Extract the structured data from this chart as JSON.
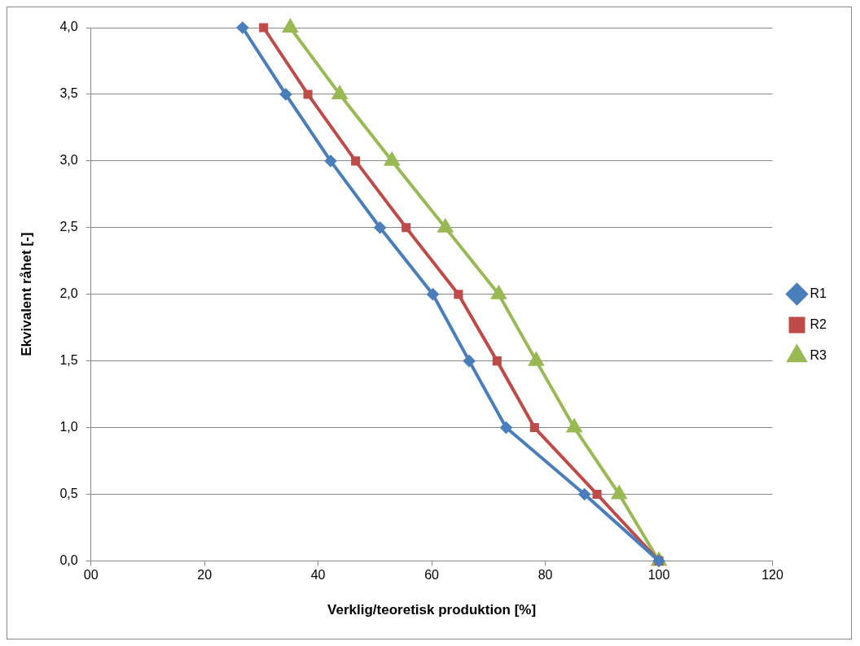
{
  "chart_data": {
    "type": "line",
    "xlabel": "Verklig/teoretisk produktion [%]",
    "ylabel": "Ekvivalent råhet [-]",
    "xlim": [
      0,
      120
    ],
    "xticks": [
      {
        "value": 0,
        "label": "00"
      },
      20,
      40,
      60,
      80,
      100,
      120
    ],
    "ylim": [
      0,
      4
    ],
    "yticks": [
      {
        "value": 0,
        "label": "0,0"
      },
      {
        "value": 0.5,
        "label": "0,5"
      },
      {
        "value": 1,
        "label": "1,0"
      },
      {
        "value": 1.5,
        "label": "1,5"
      },
      {
        "value": 2,
        "label": "2,0"
      },
      {
        "value": 2.5,
        "label": "2,5"
      },
      {
        "value": 3,
        "label": "3,0"
      },
      {
        "value": 3.5,
        "label": "3,5"
      },
      {
        "value": 4,
        "label": "4,0"
      }
    ],
    "grid": "y",
    "legend": "right",
    "line_style": "solid",
    "series": [
      {
        "name": "R1",
        "color": "#4a7ebb",
        "marker": "diamond",
        "x": [
          26.7,
          34.3,
          42.2,
          50.9,
          60.2,
          66.6,
          73.1,
          86.9,
          100
        ],
        "values": [
          4,
          3.5,
          3,
          2.5,
          2,
          1.5,
          1,
          0.5,
          0
        ]
      },
      {
        "name": "R2",
        "color": "#be4b48",
        "marker": "square",
        "x": [
          30.4,
          38.2,
          46.6,
          55.5,
          64.7,
          71.5,
          78.1,
          89.1,
          100
        ],
        "values": [
          4,
          3.5,
          3,
          2.5,
          2,
          1.5,
          1,
          0.5,
          0
        ]
      },
      {
        "name": "R3",
        "color": "#98b954",
        "marker": "triangle",
        "x": [
          35.1,
          43.8,
          53.0,
          62.4,
          71.8,
          78.4,
          85.1,
          93.0,
          100
        ],
        "values": [
          4,
          3.5,
          3,
          2.5,
          2,
          1.5,
          1,
          0.5,
          0
        ]
      }
    ]
  }
}
